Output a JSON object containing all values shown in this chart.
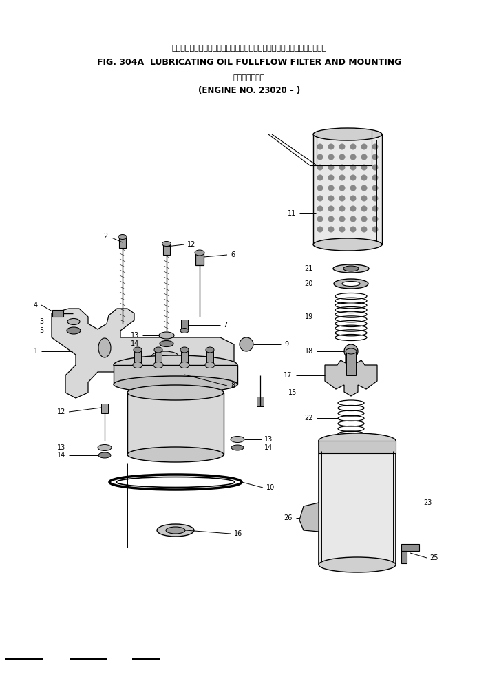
{
  "title_jp": "ルーブリケーティングオイルフルフロー　フィルタおよび　マウンティング",
  "title_en": "FIG. 304A  LUBRICATING OIL FULLFLOW FILTER AND MOUNTING",
  "subtitle_jp": "適　用　号　機",
  "subtitle_en": "(ENGINE NO. 23020 – )",
  "bg_color": "#ffffff",
  "header_lines": [
    [
      0.01,
      0.974,
      0.085,
      0.974
    ],
    [
      0.14,
      0.974,
      0.215,
      0.974
    ],
    [
      0.265,
      0.974,
      0.32,
      0.974
    ]
  ]
}
